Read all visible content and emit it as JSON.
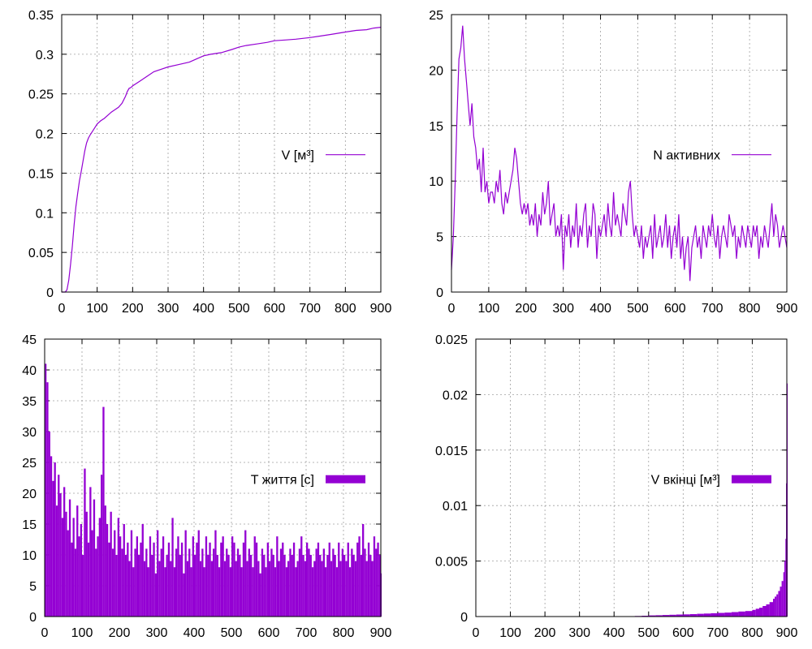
{
  "chart_data": [
    {
      "type": "line",
      "color": "#9400d3",
      "xlim": [
        0,
        900
      ],
      "ylim": [
        0,
        0.35
      ],
      "xticks": [
        "0",
        "100",
        "200",
        "300",
        "400",
        "500",
        "600",
        "700",
        "800",
        "900"
      ],
      "yticks": [
        "0",
        "0.05",
        "0.1",
        "0.15",
        "0.2",
        "0.25",
        "0.3",
        "0.35"
      ],
      "grid": true,
      "legend_position": "right-middle",
      "series": [
        {
          "name": "V [м³]",
          "x": [
            0,
            10,
            15,
            20,
            25,
            30,
            35,
            40,
            45,
            50,
            55,
            60,
            65,
            70,
            75,
            80,
            90,
            100,
            110,
            120,
            130,
            140,
            150,
            160,
            170,
            180,
            185,
            190,
            195,
            200,
            220,
            240,
            260,
            280,
            300,
            330,
            360,
            380,
            400,
            420,
            450,
            480,
            500,
            520,
            550,
            580,
            600,
            630,
            660,
            700,
            730,
            760,
            800,
            830,
            860,
            880,
            900
          ],
          "y": [
            0,
            0,
            0.003,
            0.015,
            0.035,
            0.058,
            0.085,
            0.108,
            0.125,
            0.14,
            0.152,
            0.165,
            0.178,
            0.188,
            0.194,
            0.198,
            0.205,
            0.212,
            0.216,
            0.219,
            0.223,
            0.227,
            0.23,
            0.233,
            0.238,
            0.247,
            0.253,
            0.257,
            0.258,
            0.26,
            0.266,
            0.272,
            0.278,
            0.281,
            0.284,
            0.287,
            0.29,
            0.294,
            0.298,
            0.3,
            0.302,
            0.306,
            0.309,
            0.311,
            0.313,
            0.315,
            0.317,
            0.318,
            0.319,
            0.321,
            0.323,
            0.325,
            0.328,
            0.33,
            0.331,
            0.333,
            0.334
          ]
        }
      ]
    },
    {
      "type": "line",
      "color": "#9400d3",
      "xlim": [
        0,
        900
      ],
      "ylim": [
        0,
        25
      ],
      "xticks": [
        "0",
        "100",
        "200",
        "300",
        "400",
        "500",
        "600",
        "700",
        "800",
        "900"
      ],
      "yticks": [
        "0",
        "5",
        "10",
        "15",
        "20",
        "25"
      ],
      "grid": true,
      "legend_position": "right-middle",
      "series": [
        {
          "name": "N активних",
          "x": [
            0,
            5,
            10,
            15,
            20,
            25,
            30,
            35,
            40,
            45,
            50,
            55,
            60,
            65,
            70,
            75,
            80,
            85,
            90,
            95,
            100,
            105,
            110,
            115,
            120,
            125,
            130,
            135,
            140,
            145,
            150,
            155,
            160,
            165,
            170,
            175,
            180,
            185,
            190,
            195,
            200,
            205,
            210,
            215,
            220,
            225,
            230,
            235,
            240,
            245,
            250,
            255,
            260,
            265,
            270,
            275,
            280,
            285,
            290,
            295,
            300,
            305,
            310,
            315,
            320,
            325,
            330,
            335,
            340,
            345,
            350,
            355,
            360,
            365,
            370,
            375,
            380,
            385,
            390,
            395,
            400,
            405,
            410,
            415,
            420,
            425,
            430,
            435,
            440,
            445,
            450,
            455,
            460,
            465,
            470,
            475,
            480,
            485,
            490,
            495,
            500,
            505,
            510,
            515,
            520,
            525,
            530,
            535,
            540,
            545,
            550,
            555,
            560,
            565,
            570,
            575,
            580,
            585,
            590,
            595,
            600,
            605,
            610,
            615,
            620,
            625,
            630,
            635,
            640,
            645,
            650,
            655,
            660,
            665,
            670,
            675,
            680,
            685,
            690,
            695,
            700,
            705,
            710,
            715,
            720,
            725,
            730,
            735,
            740,
            745,
            750,
            755,
            760,
            765,
            770,
            775,
            780,
            785,
            790,
            795,
            800,
            805,
            810,
            815,
            820,
            825,
            830,
            835,
            840,
            845,
            850,
            855,
            860,
            865,
            870,
            875,
            880,
            885,
            890,
            895,
            900
          ],
          "y": [
            2,
            5,
            10,
            16,
            21,
            22,
            24,
            21,
            19,
            17,
            15,
            17,
            14,
            13,
            11,
            12,
            9,
            13,
            9,
            10,
            8,
            9,
            9,
            8,
            10,
            9,
            11,
            8,
            7,
            9,
            8,
            9,
            10,
            11,
            13,
            12,
            10,
            8,
            7,
            8,
            7,
            8,
            6,
            7,
            6,
            8,
            5,
            7,
            6,
            9,
            7,
            8,
            10,
            6,
            7,
            8,
            5,
            6,
            5,
            7,
            2,
            6,
            5,
            7,
            4,
            6,
            5,
            8,
            4,
            6,
            5,
            7,
            8,
            4,
            6,
            5,
            8,
            7,
            3,
            6,
            5,
            6,
            7,
            5,
            8,
            6,
            5,
            9,
            6,
            7,
            6,
            5,
            8,
            7,
            6,
            9,
            10,
            7,
            5,
            6,
            5,
            4,
            6,
            3,
            5,
            4,
            5,
            6,
            3,
            7,
            4,
            5,
            6,
            4,
            5,
            7,
            4,
            6,
            3,
            5,
            6,
            4,
            7,
            3,
            5,
            2,
            4,
            5,
            1,
            4,
            5,
            6,
            4,
            5,
            3,
            6,
            5,
            4,
            6,
            5,
            7,
            5,
            4,
            6,
            3,
            5,
            6,
            5,
            4,
            7,
            6,
            5,
            6,
            3,
            5,
            4,
            6,
            5,
            4,
            6,
            5,
            4,
            6,
            5,
            6,
            3,
            5,
            4,
            6,
            5,
            4,
            6,
            8,
            5,
            7,
            6,
            4,
            5,
            6,
            5,
            4
          ]
        }
      ]
    },
    {
      "type": "bar",
      "color": "#9400d3",
      "xlim": [
        0,
        900
      ],
      "ylim": [
        0,
        45
      ],
      "xticks": [
        "0",
        "100",
        "200",
        "300",
        "400",
        "500",
        "600",
        "700",
        "800",
        "900"
      ],
      "yticks": [
        "0",
        "5",
        "10",
        "15",
        "20",
        "25",
        "30",
        "35",
        "40",
        "45"
      ],
      "grid": true,
      "legend_position": "right-middle",
      "series": [
        {
          "name": "T життя [с]",
          "x": [
            0,
            5,
            10,
            15,
            20,
            25,
            30,
            35,
            40,
            45,
            50,
            55,
            60,
            65,
            70,
            75,
            80,
            85,
            90,
            95,
            100,
            105,
            110,
            115,
            120,
            125,
            130,
            135,
            140,
            145,
            150,
            155,
            160,
            165,
            170,
            175,
            180,
            185,
            190,
            195,
            200,
            205,
            210,
            215,
            220,
            225,
            230,
            235,
            240,
            245,
            250,
            255,
            260,
            265,
            270,
            275,
            280,
            285,
            290,
            295,
            300,
            305,
            310,
            315,
            320,
            325,
            330,
            335,
            340,
            345,
            350,
            355,
            360,
            365,
            370,
            375,
            380,
            385,
            390,
            395,
            400,
            405,
            410,
            415,
            420,
            425,
            430,
            435,
            440,
            445,
            450,
            455,
            460,
            465,
            470,
            475,
            480,
            485,
            490,
            495,
            500,
            505,
            510,
            515,
            520,
            525,
            530,
            535,
            540,
            545,
            550,
            555,
            560,
            565,
            570,
            575,
            580,
            585,
            590,
            595,
            600,
            605,
            610,
            615,
            620,
            625,
            630,
            635,
            640,
            645,
            650,
            655,
            660,
            665,
            670,
            675,
            680,
            685,
            690,
            695,
            700,
            705,
            710,
            715,
            720,
            725,
            730,
            735,
            740,
            745,
            750,
            755,
            760,
            765,
            770,
            775,
            780,
            785,
            790,
            795,
            800,
            805,
            810,
            815,
            820,
            825,
            830,
            835,
            840,
            845,
            850,
            855,
            860,
            865,
            870,
            875,
            880,
            885,
            890,
            895,
            900
          ],
          "y": [
            41,
            38,
            30,
            26,
            22,
            25,
            18,
            23,
            20,
            16,
            21,
            17,
            14,
            19,
            12,
            16,
            11,
            18,
            13,
            15,
            10,
            24,
            17,
            12,
            21,
            14,
            19,
            11,
            13,
            16,
            23,
            34,
            18,
            15,
            12,
            17,
            11,
            14,
            10,
            16,
            13,
            11,
            15,
            10,
            12,
            9,
            14,
            8,
            11,
            13,
            10,
            12,
            15,
            9,
            11,
            8,
            13,
            10,
            12,
            7,
            14,
            9,
            11,
            13,
            8,
            10,
            12,
            9,
            16,
            8,
            11,
            13,
            10,
            12,
            7,
            14,
            9,
            11,
            8,
            13,
            10,
            12,
            14,
            9,
            11,
            8,
            13,
            10,
            12,
            9,
            11,
            14,
            10,
            8,
            12,
            13,
            9,
            11,
            10,
            8,
            13,
            12,
            9,
            11,
            10,
            8,
            12,
            14,
            9,
            11,
            10,
            8,
            13,
            12,
            9,
            7,
            11,
            10,
            8,
            12,
            9,
            11,
            10,
            8,
            13,
            9,
            11,
            12,
            10,
            8,
            9,
            11,
            10,
            12,
            8,
            9,
            11,
            13,
            10,
            9,
            12,
            11,
            10,
            8,
            9,
            11,
            12,
            10,
            9,
            11,
            8,
            10,
            12,
            9,
            11,
            10,
            8,
            12,
            9,
            11,
            10,
            9,
            12,
            8,
            11,
            10,
            9,
            12,
            13,
            10,
            15,
            11,
            9,
            12,
            10,
            9,
            13,
            11,
            12,
            10,
            7
          ]
        }
      ]
    },
    {
      "type": "bar",
      "color": "#9400d3",
      "xlim": [
        0,
        900
      ],
      "ylim": [
        0,
        0.025
      ],
      "xticks": [
        "0",
        "100",
        "200",
        "300",
        "400",
        "500",
        "600",
        "700",
        "800",
        "900"
      ],
      "yticks": [
        "0",
        "0.005",
        "0.01",
        "0.015",
        "0.02",
        "0.025"
      ],
      "grid": true,
      "legend_position": "right-middle",
      "series": [
        {
          "name": "V вкінці [м³]",
          "x": [
            0,
            50,
            100,
            150,
            200,
            250,
            300,
            350,
            400,
            440,
            460,
            480,
            500,
            520,
            540,
            560,
            580,
            600,
            620,
            640,
            660,
            680,
            700,
            720,
            740,
            760,
            780,
            800,
            810,
            820,
            830,
            840,
            850,
            860,
            865,
            870,
            875,
            880,
            885,
            890,
            893,
            896,
            898,
            900
          ],
          "y": [
            0,
            0,
            0,
            0,
            0,
            0,
            0,
            0,
            0,
            3e-05,
            5e-05,
            7e-05,
            0.0001,
            0.00012,
            0.00014,
            0.00016,
            0.00018,
            0.0002,
            0.00022,
            0.00025,
            0.00027,
            0.0003,
            0.00033,
            0.00036,
            0.0004,
            0.00045,
            0.0005,
            0.0006,
            0.0007,
            0.0008,
            0.00095,
            0.0011,
            0.0013,
            0.0016,
            0.0018,
            0.002,
            0.0023,
            0.0027,
            0.0032,
            0.004,
            0.005,
            0.007,
            0.012,
            0.021
          ]
        }
      ]
    }
  ]
}
